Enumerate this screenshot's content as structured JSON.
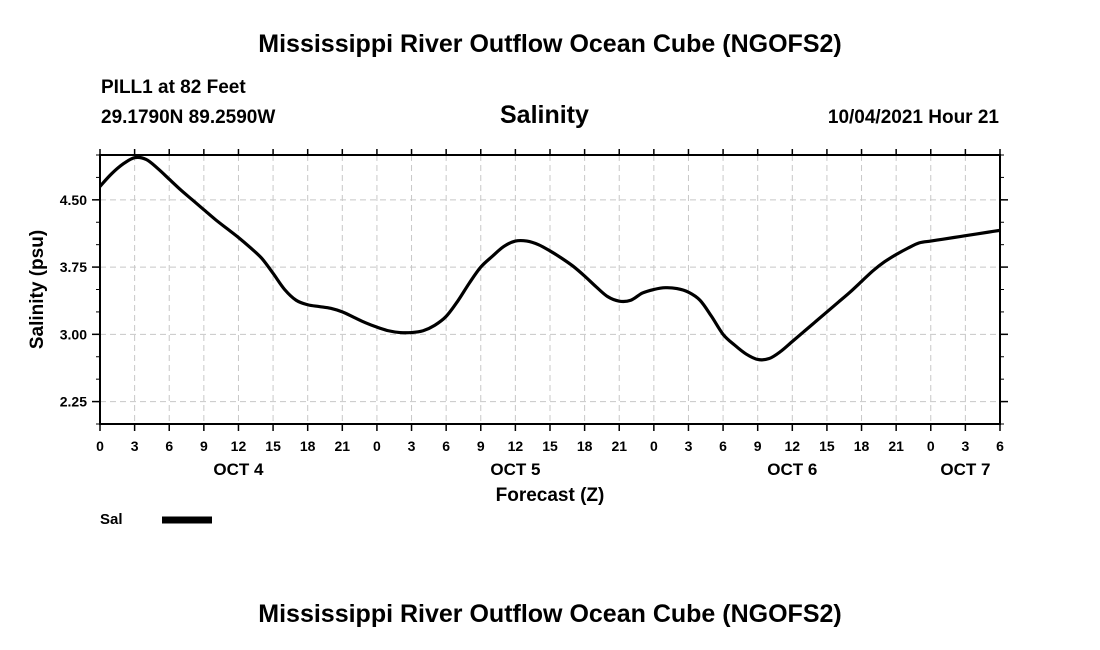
{
  "header": {
    "main_title": "Mississippi River Outflow Ocean Cube (NGOFS2)",
    "station": "PILL1 at 82 Feet",
    "coords": "29.1790N  89.2590W",
    "chart_title": "Salinity",
    "forecast_time": "10/04/2021 Hour 21"
  },
  "footer": {
    "title": "Mississippi River Outflow Ocean Cube (NGOFS2)"
  },
  "chart_data": {
    "type": "line",
    "title": "Salinity",
    "xlabel": "Forecast (Z)",
    "ylabel": "Salinity (psu)",
    "ylim": [
      2.0,
      5.0
    ],
    "xlim_hours": [
      0,
      78
    ],
    "grid": true,
    "yticks": [
      2.25,
      3.0,
      3.75,
      4.5
    ],
    "ytick_labels": [
      "2.25",
      "3.00",
      "3.75",
      "4.50"
    ],
    "xtick_hours": [
      0,
      3,
      6,
      9,
      12,
      15,
      18,
      21,
      24,
      27,
      30,
      33,
      36,
      39,
      42,
      45,
      48,
      51,
      54,
      57,
      60,
      63,
      66,
      69,
      72,
      75,
      78
    ],
    "xtick_labels": [
      "0",
      "3",
      "6",
      "9",
      "12",
      "15",
      "18",
      "21",
      "0",
      "3",
      "6",
      "9",
      "12",
      "15",
      "18",
      "21",
      "0",
      "3",
      "6",
      "9",
      "12",
      "15",
      "18",
      "21",
      "0",
      "3",
      "6"
    ],
    "day_labels": [
      {
        "label": "OCT 4",
        "hour": 12
      },
      {
        "label": "OCT 5",
        "hour": 36
      },
      {
        "label": "OCT 6",
        "hour": 60
      },
      {
        "label": "OCT 7",
        "hour": 75
      }
    ],
    "legend": {
      "label": "Sal",
      "placement": "bottom-left"
    },
    "series": [
      {
        "name": "Sal",
        "color": "#000000",
        "x": [
          0,
          1,
          2,
          3,
          4,
          5,
          6,
          7,
          8,
          9,
          10,
          11,
          12,
          13,
          14,
          15,
          16,
          17,
          18,
          19,
          20,
          21,
          22,
          23,
          24,
          25,
          26,
          27,
          28,
          29,
          30,
          31,
          32,
          33,
          34,
          35,
          36,
          37,
          38,
          39,
          40,
          41,
          42,
          43,
          44,
          45,
          46,
          47,
          48,
          49,
          50,
          51,
          52,
          53,
          54,
          55,
          56,
          57,
          58,
          59,
          60,
          61,
          62,
          63,
          64,
          65,
          66,
          67,
          68,
          69,
          70,
          71,
          72,
          73,
          74,
          75,
          76,
          77,
          78
        ],
        "values": [
          4.65,
          4.79,
          4.9,
          4.97,
          4.95,
          4.85,
          4.73,
          4.61,
          4.5,
          4.39,
          4.28,
          4.18,
          4.08,
          3.97,
          3.85,
          3.68,
          3.5,
          3.38,
          3.33,
          3.31,
          3.29,
          3.25,
          3.19,
          3.13,
          3.08,
          3.04,
          3.02,
          3.02,
          3.04,
          3.1,
          3.2,
          3.37,
          3.57,
          3.75,
          3.87,
          3.98,
          4.04,
          4.04,
          4.0,
          3.93,
          3.85,
          3.76,
          3.65,
          3.53,
          3.42,
          3.37,
          3.38,
          3.46,
          3.5,
          3.52,
          3.51,
          3.47,
          3.38,
          3.2,
          3.0,
          2.88,
          2.78,
          2.72,
          2.73,
          2.81,
          2.92,
          3.03,
          3.14,
          3.25,
          3.36,
          3.47,
          3.59,
          3.71,
          3.81,
          3.89,
          3.96,
          4.02,
          4.04,
          4.06,
          4.08,
          4.1,
          4.12,
          4.14,
          4.16
        ]
      }
    ]
  }
}
